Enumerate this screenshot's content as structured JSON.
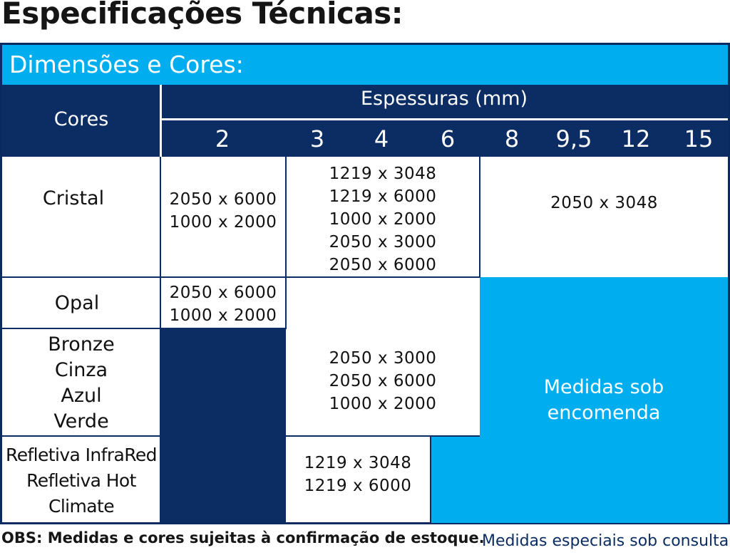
{
  "title": "Especificações Técnicas:",
  "section_header": "Dimensões e Cores:",
  "table": {
    "cores_header": "Cores",
    "espessuras_header": "Espessuras (mm)",
    "thicknesses": [
      "2",
      "3",
      "4",
      "6",
      "8",
      "9,5",
      "12",
      "15"
    ],
    "rows": {
      "cristal": {
        "label": "Cristal",
        "col_2mm": [
          "2050 x 6000",
          "1000 x 2000"
        ],
        "col_3_6mm": [
          "1219 x 3048",
          "1219 x 6000",
          "1000 x 2000",
          "2050 x 3000",
          "2050 x 6000"
        ],
        "col_8_15mm": [
          "2050 x 3048"
        ]
      },
      "opal": {
        "label": "Opal",
        "col_2mm": [
          "2050 x 6000",
          "1000 x 2000"
        ]
      },
      "colors": {
        "labels": [
          "Bronze",
          "Cinza",
          "Azul",
          "Verde"
        ],
        "col_3_6mm": [
          "2050 x 3000",
          "2050 x 6000",
          "1000 x 2000"
        ]
      },
      "refletiva": {
        "labels": [
          "Refletiva InfraRed",
          "Refletiva Hot",
          "Climate"
        ],
        "col_3_4mm": [
          "1219 x 3048",
          "1219 x 6000"
        ]
      }
    },
    "special_order": [
      "Medidas sob",
      "encomenda"
    ]
  },
  "footer": {
    "note": "OBS: Medidas e cores sujeitas à confirmação de estoque.",
    "special": "Medidas especiais sob consulta"
  },
  "colors": {
    "navy": "#0b2d63",
    "cyan": "#00aeef",
    "white": "#ffffff"
  }
}
